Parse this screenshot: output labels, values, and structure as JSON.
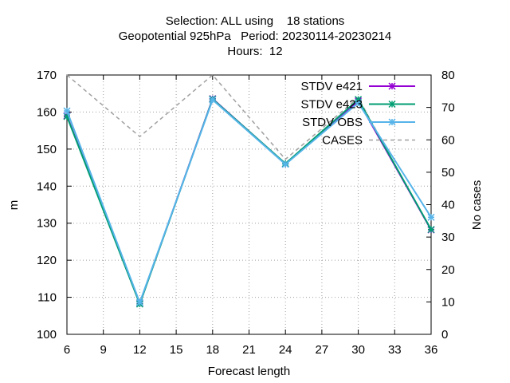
{
  "chart_data": {
    "type": "line",
    "title_lines": [
      "Selection: ALL using    18 stations",
      "Geopotential 925hPa   Period: 20230114-20230214",
      "Hours:  12"
    ],
    "xlabel": "Forecast length",
    "ylabel": "m",
    "y2label": "No cases",
    "xlim": [
      6,
      36
    ],
    "ylim": [
      100,
      170
    ],
    "y2lim": [
      0,
      80
    ],
    "xticks": [
      6,
      9,
      12,
      15,
      18,
      21,
      24,
      27,
      30,
      33,
      36
    ],
    "yticks": [
      100,
      110,
      120,
      130,
      140,
      150,
      160,
      170
    ],
    "y2ticks": [
      0,
      10,
      20,
      30,
      40,
      50,
      60,
      70,
      80
    ],
    "grid": true,
    "legend_position": "top-right",
    "x": [
      6,
      12,
      18,
      24,
      30,
      36
    ],
    "series": [
      {
        "name": "STDV e421",
        "axis": "y",
        "color": "#9400d3",
        "marker": "x-star",
        "dash": false,
        "values": [
          159.0,
          108.3,
          163.6,
          146.0,
          163.0,
          128.2
        ]
      },
      {
        "name": "STDV e423",
        "axis": "y",
        "color": "#009e73",
        "marker": "x-star",
        "dash": false,
        "values": [
          158.8,
          108.2,
          163.5,
          146.1,
          163.4,
          128.3
        ]
      },
      {
        "name": "STDV OBS",
        "axis": "y",
        "color": "#56b4e9",
        "marker": "x-star",
        "dash": false,
        "values": [
          160.3,
          108.6,
          163.3,
          145.9,
          162.5,
          131.6
        ]
      },
      {
        "name": "CASES",
        "axis": "y2",
        "color": "#a0a0a0",
        "marker": "none",
        "dash": true,
        "values": [
          80,
          61,
          80,
          54,
          73,
          32
        ]
      }
    ]
  }
}
